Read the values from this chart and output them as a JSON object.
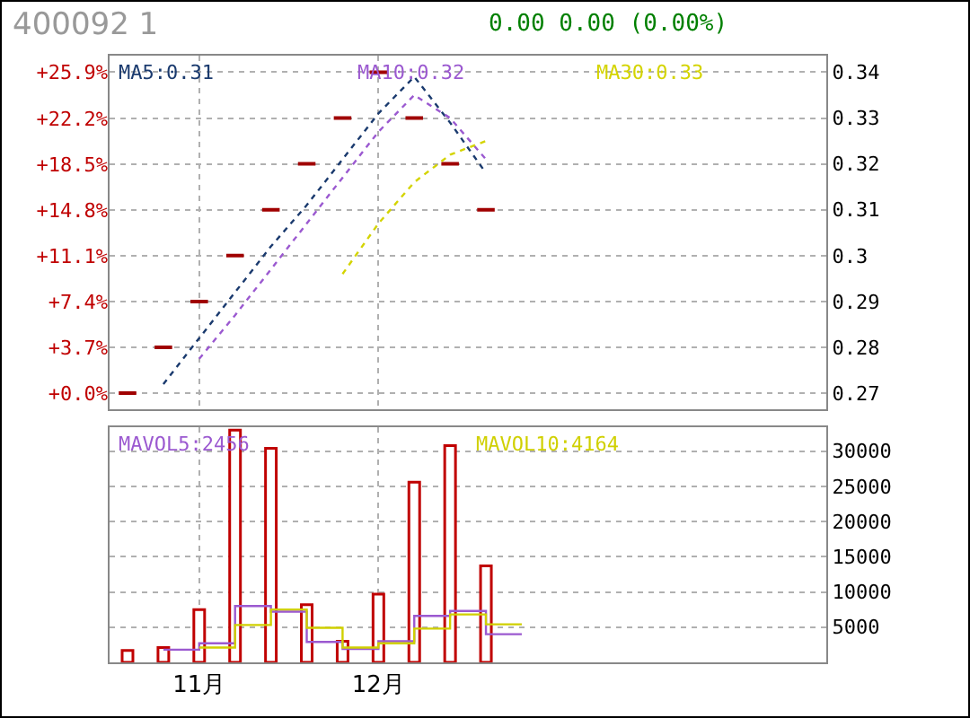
{
  "chart_data": [
    {
      "type": "candlestick",
      "title": "400092 1",
      "annotations": [
        "0.00 0.00 (0.00%)"
      ],
      "categories": [
        null,
        null,
        null,
        null,
        null,
        null,
        null,
        null,
        null,
        null,
        null,
        null,
        null,
        null,
        null,
        null,
        null,
        null,
        null,
        null
      ],
      "ohlc": [
        [
          0.27,
          0.27,
          0.27,
          0.27
        ],
        [
          0.28,
          0.28,
          0.28,
          0.28
        ],
        [
          0.29,
          0.29,
          0.29,
          0.29
        ],
        [
          0.3,
          0.3,
          0.3,
          0.3
        ],
        [
          0.31,
          0.31,
          0.31,
          0.31
        ],
        [
          0.32,
          0.32,
          0.32,
          0.32
        ],
        [
          0.33,
          0.33,
          0.33,
          0.33
        ],
        [
          0.34,
          0.34,
          0.34,
          0.34
        ],
        [
          0.33,
          0.33,
          0.33,
          0.33
        ],
        [
          0.32,
          0.32,
          0.32,
          0.32
        ],
        [
          0.31,
          0.31,
          0.31,
          0.31
        ],
        null,
        null,
        null,
        null,
        null,
        null,
        null,
        null,
        null
      ],
      "color": "#a00000",
      "series": [
        {
          "name": "MA5:0.31",
          "type": "line",
          "color": "#1a3a6e",
          "values": [
            null,
            0.272,
            0.282,
            0.292,
            0.302,
            0.311,
            0.321,
            0.331,
            0.339,
            0.329,
            0.318,
            null,
            null,
            null,
            null,
            null,
            null,
            null,
            null,
            null
          ]
        },
        {
          "name": "MA10:0.32",
          "type": "line",
          "color": "#9b59d0",
          "values": [
            null,
            null,
            0.2775,
            0.287,
            0.297,
            0.307,
            0.317,
            0.327,
            0.335,
            0.33,
            0.321,
            null,
            null,
            null,
            null,
            null,
            null,
            null,
            null,
            null
          ]
        },
        {
          "name": "MA30:0.33",
          "type": "line",
          "color": "#d4d400",
          "values": [
            null,
            null,
            null,
            null,
            null,
            null,
            0.296,
            0.307,
            0.316,
            0.322,
            0.325,
            null,
            null,
            null,
            null,
            null,
            null,
            null,
            null,
            null
          ]
        }
      ],
      "line_style": "dotted",
      "ylim": [
        0.2665,
        0.3436
      ],
      "yticks": [
        0.27,
        0.28,
        0.29,
        0.3,
        0.31,
        0.32,
        0.33,
        0.34
      ],
      "y2lim": [
        -1.3,
        27.26
      ],
      "y2ticks": [
        {
          "value": 0.0,
          "label": "+0.0%"
        },
        {
          "value": 3.7,
          "label": "+3.7%"
        },
        {
          "value": 7.4,
          "label": "+7.4%"
        },
        {
          "value": 11.1,
          "label": "+11.1%"
        },
        {
          "value": 14.8,
          "label": "+14.8%"
        },
        {
          "value": 18.5,
          "label": "+18.5%"
        },
        {
          "value": 22.2,
          "label": "+22.2%"
        },
        {
          "value": 25.9,
          "label": "+25.9%"
        }
      ],
      "grid": true,
      "tick_labels": "y"
    },
    {
      "type": "bar",
      "categories": [
        null,
        null,
        "11月",
        null,
        null,
        null,
        null,
        "12月",
        null,
        null,
        null,
        null,
        null,
        null,
        null,
        null,
        null,
        null,
        null,
        null
      ],
      "series": [
        {
          "color": "#c00000",
          "values": [
            1700,
            2100,
            7500,
            33000,
            30400,
            8200,
            3000,
            9700,
            25600,
            30800,
            13700,
            null,
            null,
            null,
            null,
            null,
            null,
            null,
            null,
            null
          ]
        },
        {
          "name": "MAVOL5:2456",
          "type": "step",
          "color": "#9b59d0",
          "values": [
            null,
            1800,
            2700,
            8000,
            7200,
            2900,
            1900,
            3000,
            6600,
            7300,
            4000,
            4000,
            null,
            null,
            null,
            null,
            null,
            null,
            null,
            null
          ]
        },
        {
          "name": "MAVOL10:4164",
          "type": "step",
          "color": "#d0d000",
          "values": [
            null,
            null,
            2100,
            5300,
            7500,
            4900,
            2100,
            2700,
            4800,
            6800,
            5400,
            5400,
            null,
            null,
            null,
            null,
            null,
            null,
            null,
            null
          ]
        }
      ],
      "ylim": [
        0,
        33400
      ],
      "yticks": [
        5000,
        10000,
        15000,
        20000,
        25000,
        30000
      ],
      "grid": true
    }
  ]
}
